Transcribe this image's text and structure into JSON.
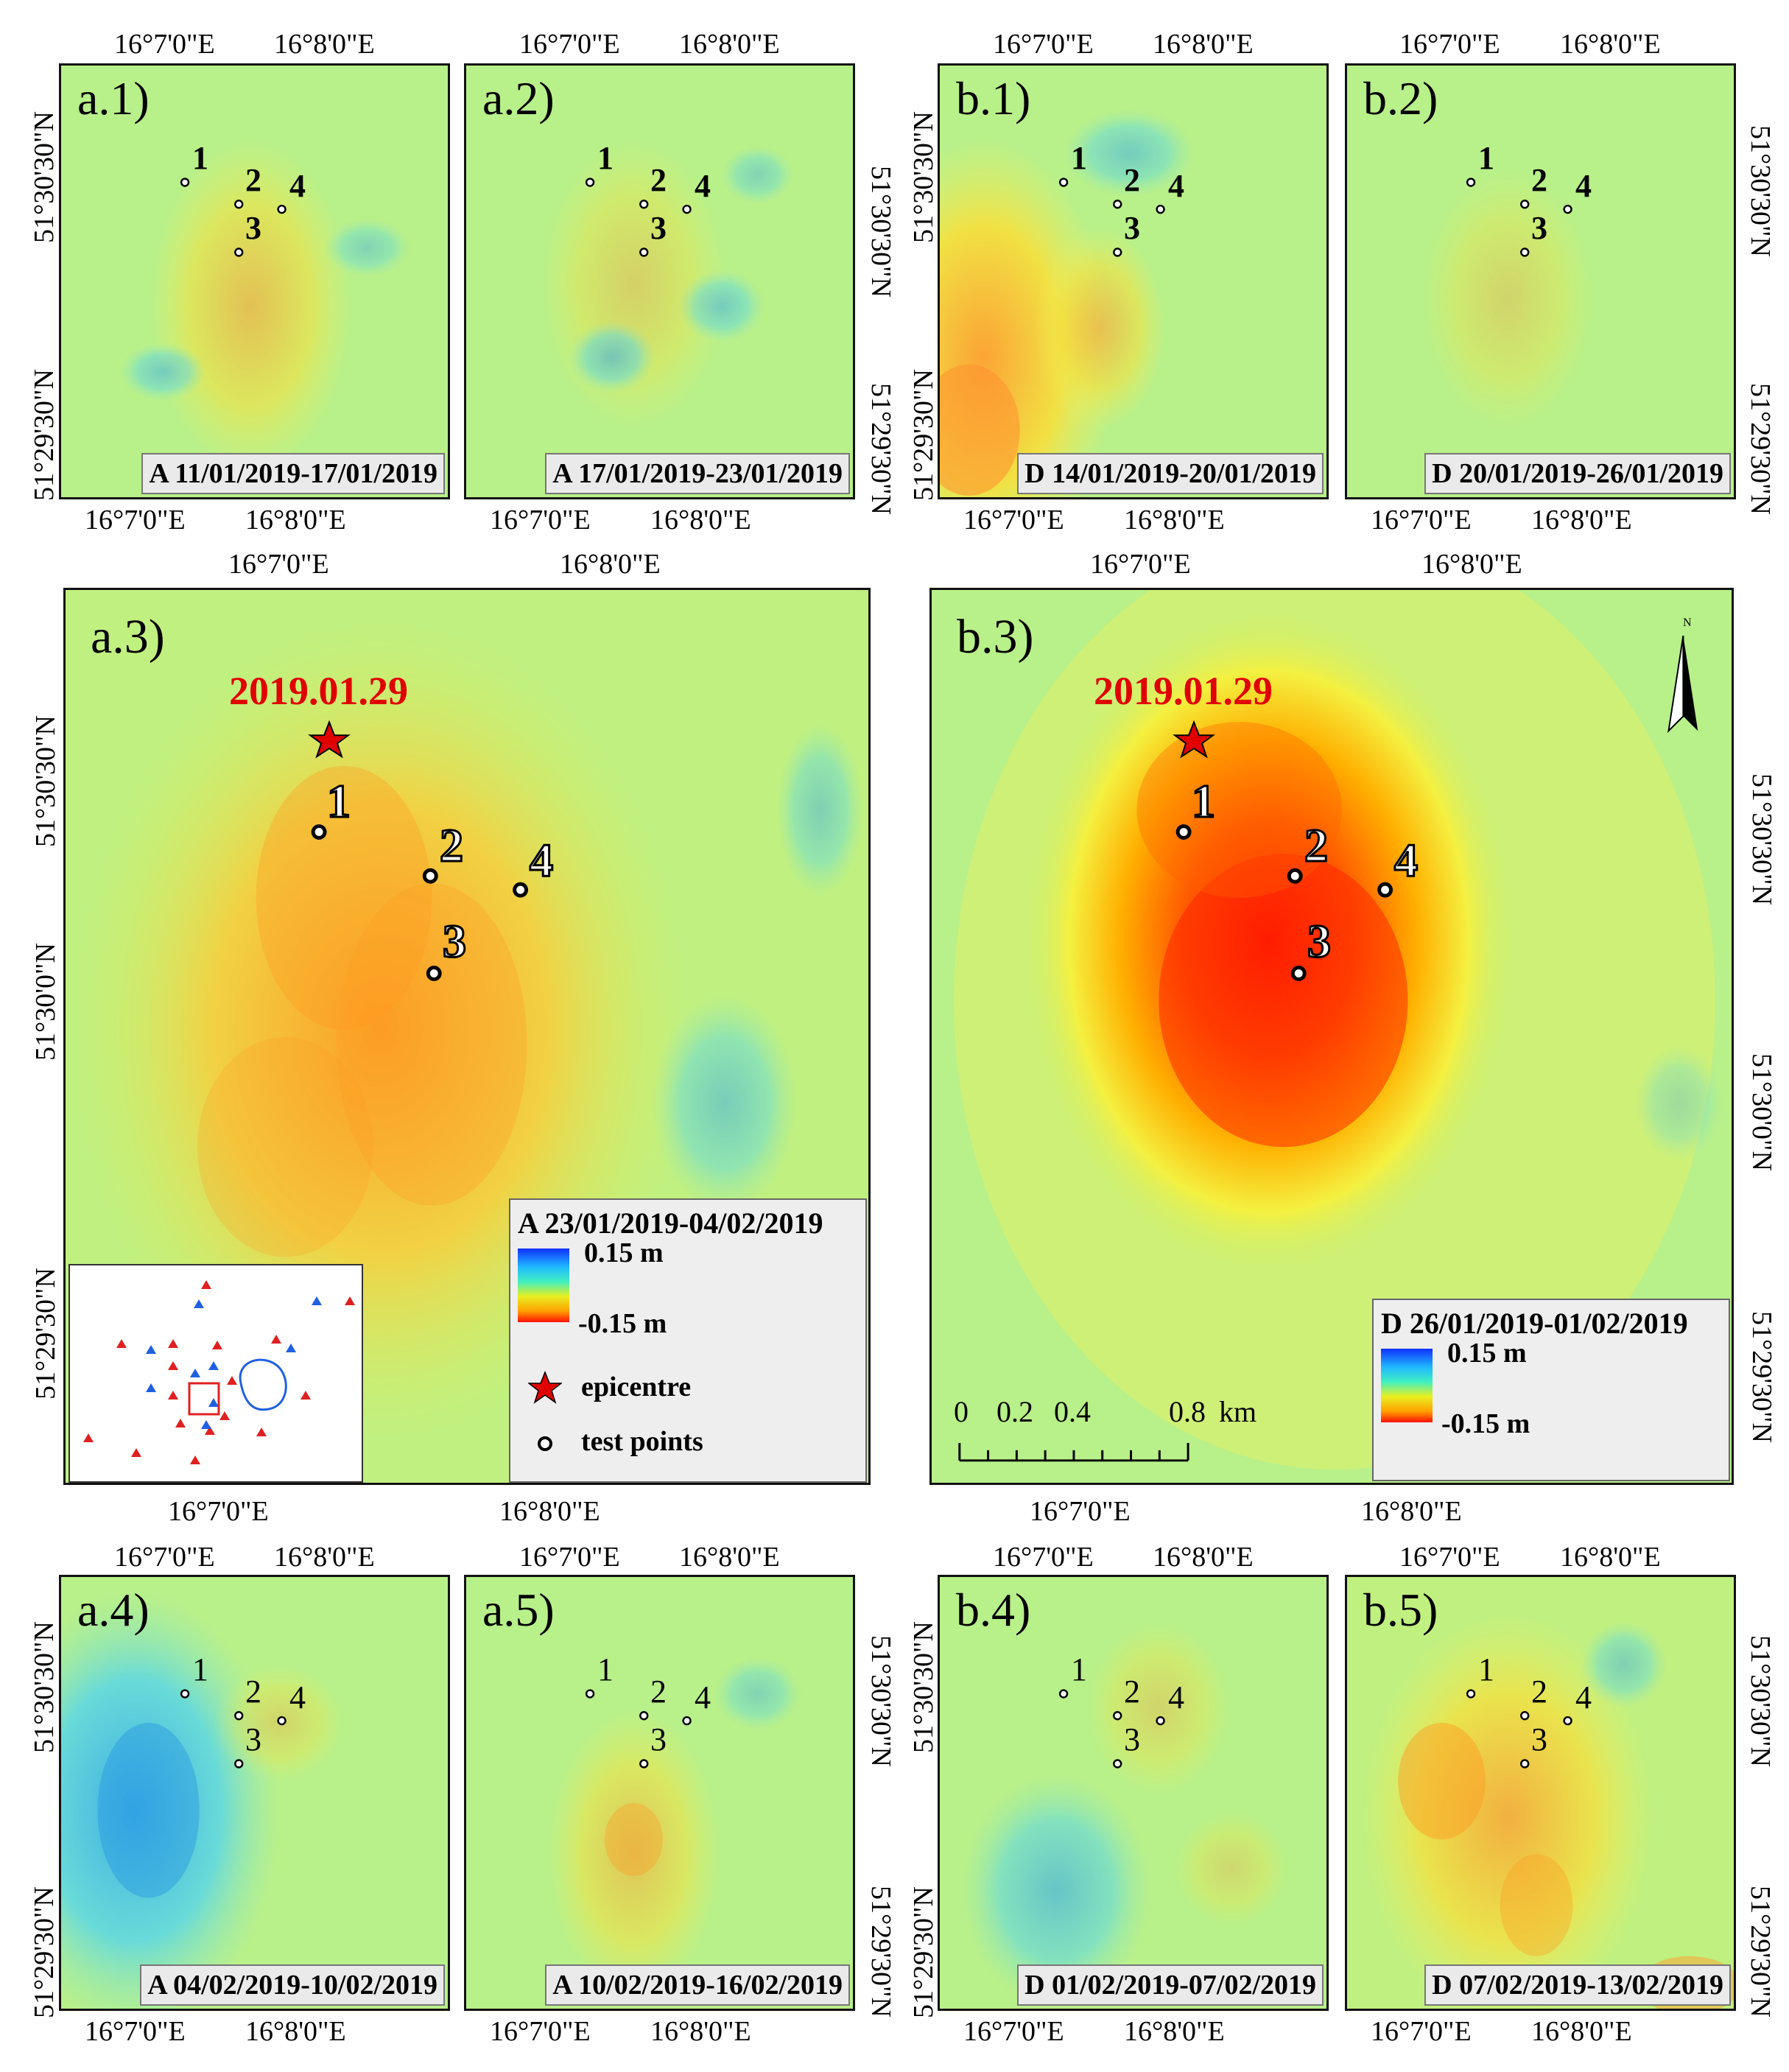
{
  "panels": {
    "a1": {
      "label": "a.1)",
      "period": "A 11/01/2019-17/01/2019"
    },
    "a2": {
      "label": "a.2)",
      "period": "A 17/01/2019-23/01/2019"
    },
    "b1": {
      "label": "b.1)",
      "period": "D 14/01/2019-20/01/2019"
    },
    "b2": {
      "label": "b.2)",
      "period": "D 20/01/2019-26/01/2019"
    },
    "a3": {
      "label": "a.3)",
      "period": "A 23/01/2019-04/02/2019"
    },
    "b3": {
      "label": "b.3)",
      "period": "D 26/01/2019-01/02/2019"
    },
    "a4": {
      "label": "a.4)",
      "period": "A 04/02/2019-10/02/2019"
    },
    "a5": {
      "label": "a.5)",
      "period": "A 10/02/2019-16/02/2019"
    },
    "b4": {
      "label": "b.4)",
      "period": "D 01/02/2019-07/02/2019"
    },
    "b5": {
      "label": "b.5)",
      "period": "D 07/02/2019-13/02/2019"
    }
  },
  "coords": {
    "lon1": "16°7'0\"E",
    "lon2": "16°8'0\"E",
    "lat1": "51°30'30\"N",
    "lat2": "51°29'30\"N",
    "lat3": "51°30'0\"N"
  },
  "points": {
    "p1": "1",
    "p2": "2",
    "p3": "3",
    "p4": "4"
  },
  "epicentre": {
    "date": "2019.01.29"
  },
  "legend": {
    "max": "0.15 m",
    "min": "-0.15 m",
    "epicentre": "epicentre",
    "test_points": "test points"
  },
  "scale": {
    "t0": "0",
    "t1": "0.2",
    "t2": "0.4",
    "t3": "0.8",
    "unit": "km"
  },
  "north": {
    "label": "N"
  },
  "colors": {
    "background": "#b8f08a",
    "uplift": "#40c8f0",
    "subsidence_low": "#f0e040",
    "subsidence_mid": "#ff9a20",
    "subsidence_high": "#ff2000",
    "epicentre": "#e00000",
    "station_red": "#e02020",
    "station_blue": "#2060e0"
  }
}
